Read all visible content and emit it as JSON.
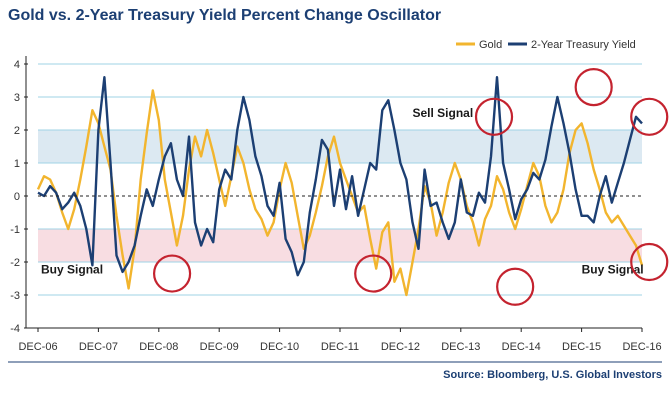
{
  "chart_data": {
    "type": "line",
    "title": "Gold vs. 2-Year Treasury Yield Percent Change Oscillator",
    "source": "Source: Bloomberg, U.S. Global Investors",
    "x_labels": [
      "DEC-06",
      "DEC-07",
      "DEC-08",
      "DEC-09",
      "DEC-10",
      "DEC-11",
      "DEC-12",
      "DEC-13",
      "DEC-14",
      "DEC-15",
      "DEC-16"
    ],
    "ylim": [
      -4,
      4
    ],
    "y_ticks": [
      "4",
      "3",
      "2",
      "1",
      "0",
      "-1",
      "-2",
      "-3",
      "-4"
    ],
    "grid": true,
    "legend_position": "top-right",
    "bands": [
      {
        "name": "sell-zone",
        "from": 1,
        "to": 2,
        "color": "#dce9f2"
      },
      {
        "name": "buy-zone",
        "from": -2,
        "to": -1,
        "color": "#f8dde2"
      }
    ],
    "colors": {
      "gold": "#f2b52e",
      "treasury": "#1c3f73",
      "circle": "#c4232f",
      "grid": "#9fd3e6",
      "axis": "#222222"
    },
    "series": [
      {
        "name": "Gold",
        "color": "#f2b52e",
        "x": [
          0,
          0.1,
          0.2,
          0.3,
          0.4,
          0.5,
          0.6,
          0.7,
          0.8,
          0.9,
          1.0,
          1.1,
          1.2,
          1.3,
          1.4,
          1.5,
          1.6,
          1.7,
          1.8,
          1.9,
          2.0,
          2.1,
          2.2,
          2.3,
          2.4,
          2.5,
          2.6,
          2.7,
          2.8,
          2.9,
          3.0,
          3.1,
          3.2,
          3.3,
          3.4,
          3.5,
          3.6,
          3.7,
          3.8,
          3.9,
          4.0,
          4.1,
          4.2,
          4.3,
          4.4,
          4.5,
          4.6,
          4.7,
          4.8,
          4.9,
          5.0,
          5.1,
          5.2,
          5.3,
          5.4,
          5.5,
          5.6,
          5.7,
          5.8,
          5.9,
          6.0,
          6.1,
          6.2,
          6.3,
          6.4,
          6.5,
          6.6,
          6.7,
          6.8,
          6.9,
          7.0,
          7.1,
          7.2,
          7.3,
          7.4,
          7.5,
          7.6,
          7.7,
          7.8,
          7.9,
          8.0,
          8.1,
          8.2,
          8.3,
          8.4,
          8.5,
          8.6,
          8.7,
          8.8,
          8.9,
          9.0,
          9.1,
          9.2,
          9.3,
          9.4,
          9.5,
          9.6,
          9.7,
          9.8,
          9.9,
          10.0
        ],
        "values": [
          0.2,
          0.6,
          0.5,
          0.1,
          -0.5,
          -1.0,
          -0.4,
          0.5,
          1.5,
          2.6,
          2.2,
          1.5,
          0.8,
          -0.6,
          -1.8,
          -2.8,
          -1.6,
          0.5,
          1.9,
          3.2,
          2.3,
          0.5,
          -0.5,
          -1.5,
          -0.6,
          0.8,
          1.8,
          1.2,
          2.0,
          1.3,
          0.5,
          -0.3,
          0.6,
          1.5,
          1.0,
          0.2,
          -0.4,
          -0.7,
          -1.2,
          -0.8,
          0.2,
          1.0,
          0.4,
          -0.6,
          -1.6,
          -1.2,
          -0.5,
          0.3,
          1.2,
          1.8,
          1.0,
          0.5,
          0.0,
          -0.5,
          -0.3,
          -1.3,
          -2.2,
          -1.1,
          -0.8,
          -2.6,
          -2.2,
          -3.0,
          -2.0,
          -1.0,
          0.3,
          -0.2,
          -1.2,
          -0.5,
          0.4,
          1.0,
          0.5,
          -0.3,
          -0.8,
          -1.5,
          -0.7,
          -0.3,
          0.6,
          0.2,
          -0.5,
          -1.0,
          -0.4,
          0.3,
          1.0,
          0.6,
          -0.3,
          -0.8,
          -0.5,
          0.2,
          1.3,
          2.0,
          2.2,
          1.6,
          0.8,
          0.2,
          -0.5,
          -0.8,
          -0.6,
          -0.9,
          -1.2,
          -1.5,
          -2.1
        ]
      },
      {
        "name": "2-Year Treasury Yield",
        "color": "#1c3f73",
        "x": [
          0,
          0.1,
          0.2,
          0.3,
          0.4,
          0.5,
          0.6,
          0.7,
          0.8,
          0.9,
          1.0,
          1.1,
          1.2,
          1.3,
          1.4,
          1.5,
          1.6,
          1.7,
          1.8,
          1.9,
          2.0,
          2.1,
          2.2,
          2.3,
          2.4,
          2.5,
          2.6,
          2.7,
          2.8,
          2.9,
          3.0,
          3.1,
          3.2,
          3.3,
          3.4,
          3.5,
          3.6,
          3.7,
          3.8,
          3.9,
          4.0,
          4.1,
          4.2,
          4.3,
          4.4,
          4.5,
          4.6,
          4.7,
          4.8,
          4.9,
          5.0,
          5.1,
          5.2,
          5.3,
          5.4,
          5.5,
          5.6,
          5.7,
          5.8,
          5.9,
          6.0,
          6.1,
          6.2,
          6.3,
          6.4,
          6.5,
          6.6,
          6.7,
          6.8,
          6.9,
          7.0,
          7.1,
          7.2,
          7.3,
          7.4,
          7.5,
          7.6,
          7.7,
          7.8,
          7.9,
          8.0,
          8.1,
          8.2,
          8.3,
          8.4,
          8.5,
          8.6,
          8.7,
          8.8,
          8.9,
          9.0,
          9.1,
          9.2,
          9.3,
          9.4,
          9.5,
          9.6,
          9.7,
          9.8,
          9.9,
          10.0
        ],
        "values": [
          0.1,
          0.0,
          0.3,
          0.1,
          -0.4,
          -0.2,
          0.1,
          -0.3,
          -1.0,
          -2.1,
          2.0,
          3.6,
          1.0,
          -1.8,
          -2.3,
          -2.0,
          -1.5,
          -0.6,
          0.2,
          -0.3,
          0.5,
          1.2,
          1.6,
          0.5,
          0.0,
          1.8,
          -0.8,
          -1.5,
          -1.0,
          -1.4,
          0.2,
          0.8,
          0.5,
          2.0,
          3.0,
          2.3,
          1.2,
          0.6,
          -0.3,
          -0.6,
          0.4,
          -1.3,
          -1.7,
          -2.4,
          -2.0,
          -0.5,
          0.5,
          1.7,
          1.4,
          -0.3,
          0.8,
          -0.4,
          0.6,
          -0.6,
          0.2,
          1.0,
          0.8,
          2.6,
          2.9,
          2.0,
          1.0,
          0.5,
          -0.8,
          -1.6,
          0.8,
          -0.3,
          -0.2,
          -0.8,
          -1.3,
          -0.8,
          0.5,
          -0.5,
          -0.6,
          0.1,
          -0.2,
          1.2,
          3.6,
          1.0,
          0.2,
          -0.7,
          -0.1,
          0.2,
          0.7,
          0.5,
          1.1,
          2.1,
          3.0,
          2.2,
          1.3,
          0.2,
          -0.6,
          -0.6,
          -0.8,
          0.0,
          0.6,
          -0.2,
          0.4,
          1.0,
          1.7,
          2.4,
          2.2
        ]
      }
    ],
    "annotations": [
      {
        "text": "Sell Signal",
        "x": 6.2,
        "y": 2.4
      },
      {
        "text": "Buy Signal",
        "x": 0.05,
        "y": -2.35
      },
      {
        "text": "Buy Signal",
        "x": 9.0,
        "y": -2.35
      }
    ],
    "circles": [
      {
        "x": 2.22,
        "y": -2.35
      },
      {
        "x": 5.55,
        "y": -2.35
      },
      {
        "x": 7.55,
        "y": 2.4
      },
      {
        "x": 7.9,
        "y": -2.75
      },
      {
        "x": 9.2,
        "y": 3.3
      },
      {
        "x": 10.12,
        "y": 2.4
      },
      {
        "x": 10.12,
        "y": -2.0
      }
    ]
  }
}
